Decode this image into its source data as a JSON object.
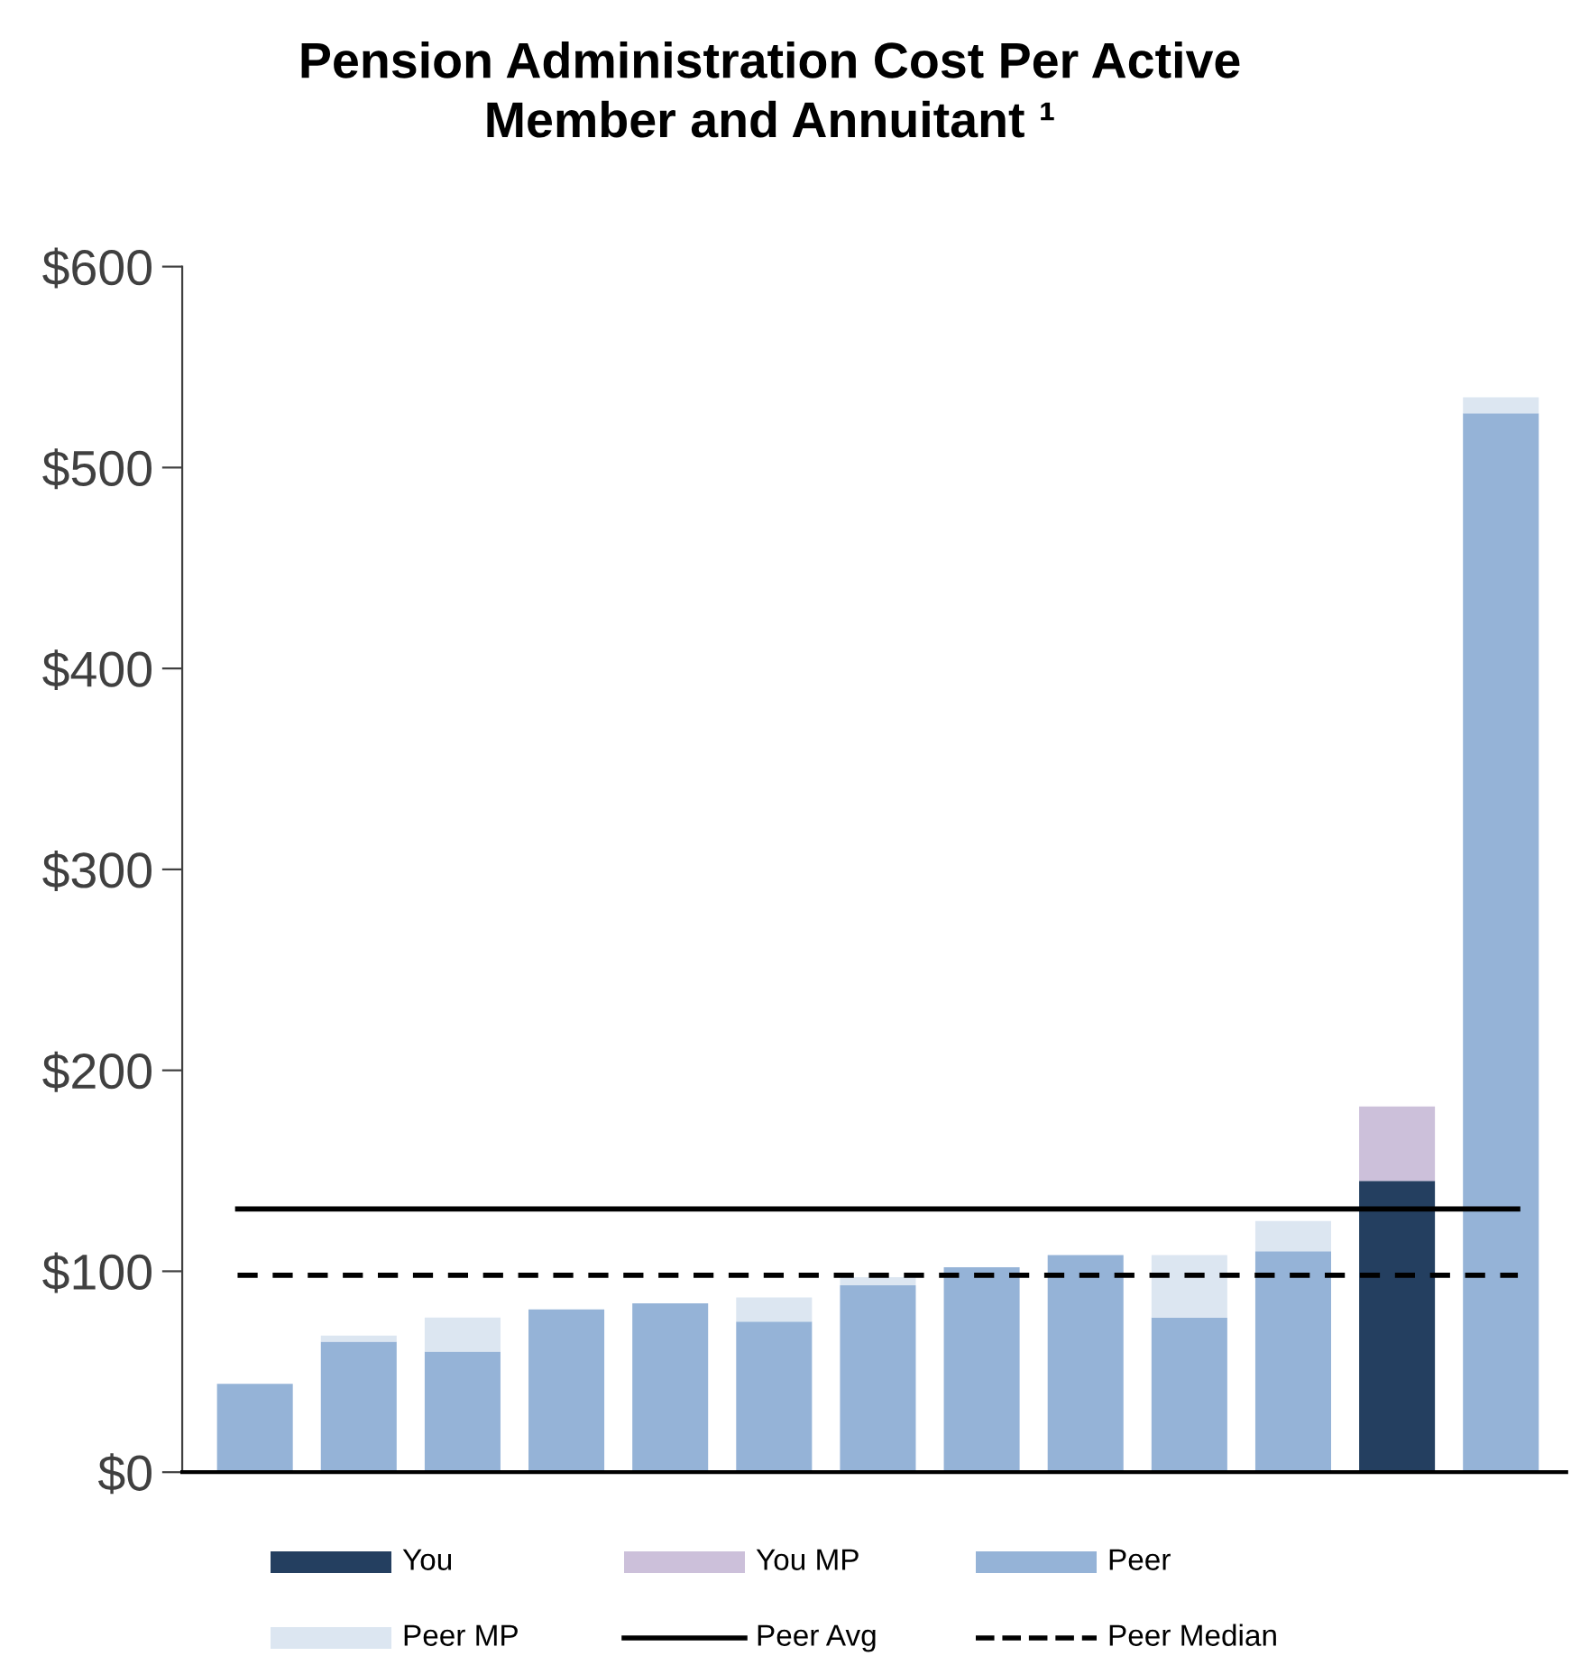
{
  "chart_data": {
    "type": "bar",
    "title": "Pension Administration Cost Per Active Member and Annuitant ¹",
    "categories": [
      null,
      null,
      null,
      null,
      null,
      null,
      null,
      null,
      null,
      null,
      null,
      null,
      null
    ],
    "stacked": true,
    "series": [
      {
        "name": "You",
        "color": "#243f60",
        "values": [
          null,
          null,
          null,
          null,
          null,
          null,
          null,
          null,
          null,
          null,
          null,
          145,
          null
        ]
      },
      {
        "name": "You MP",
        "color": "#ccc0da",
        "values": [
          null,
          null,
          null,
          null,
          null,
          null,
          null,
          null,
          null,
          null,
          null,
          37,
          null
        ]
      },
      {
        "name": "Peer",
        "color": "#95b3d7",
        "values": [
          44,
          65,
          60,
          81,
          84,
          75,
          93,
          102,
          108,
          77,
          110,
          null,
          527
        ]
      },
      {
        "name": "Peer MP",
        "color": "#dce6f1",
        "values": [
          null,
          3,
          17,
          null,
          null,
          12,
          4,
          null,
          null,
          31,
          15,
          null,
          8
        ]
      }
    ],
    "ref_lines": [
      {
        "axis": "y",
        "value": 131,
        "label": "Peer Avg",
        "color": "#000000",
        "line_style": "solid"
      },
      {
        "axis": "y",
        "value": 98,
        "label": "Peer Median",
        "color": "#000000",
        "line_style": "dashed"
      }
    ],
    "ylim": [
      0,
      600
    ],
    "yticks": [
      {
        "value": 0,
        "label": "$0"
      },
      {
        "value": 100,
        "label": "$100"
      },
      {
        "value": 200,
        "label": "$200"
      },
      {
        "value": 300,
        "label": "$300"
      },
      {
        "value": 400,
        "label": "$400"
      },
      {
        "value": 500,
        "label": "$500"
      },
      {
        "value": 600,
        "label": "$600"
      }
    ],
    "tick_labels": "y",
    "grid": false,
    "legend": "bottom"
  }
}
